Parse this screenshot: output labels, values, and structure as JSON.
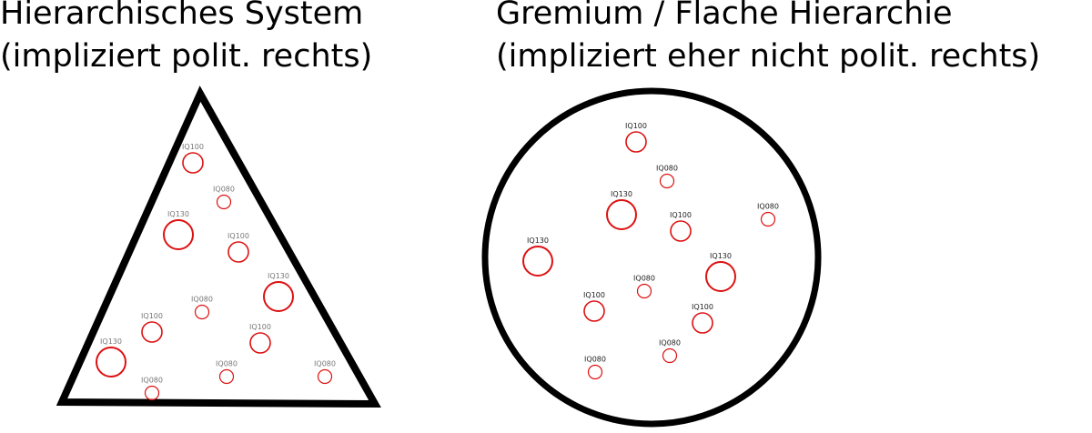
{
  "left_panel": {
    "title_line1": "Hierarchisches System",
    "title_line2": "(impliziert polit. rechts)",
    "members": [
      "IQ100",
      "IQ080",
      "IQ130",
      "IQ100",
      "IQ130",
      "IQ080",
      "IQ100",
      "IQ100",
      "IQ130",
      "IQ080",
      "IQ080",
      "IQ080"
    ]
  },
  "right_panel": {
    "title_line1": "Gremium / Flache Hierarchie",
    "title_line2": "(impliziert eher nicht polit. rechts)",
    "members": [
      "IQ100",
      "IQ080",
      "IQ130",
      "IQ100",
      "IQ080",
      "IQ130",
      "IQ130",
      "IQ080",
      "IQ100",
      "IQ100",
      "IQ080",
      "IQ080"
    ]
  },
  "colors": {
    "circle": "#dd1111",
    "shape": "#000000",
    "label": "#333333"
  }
}
